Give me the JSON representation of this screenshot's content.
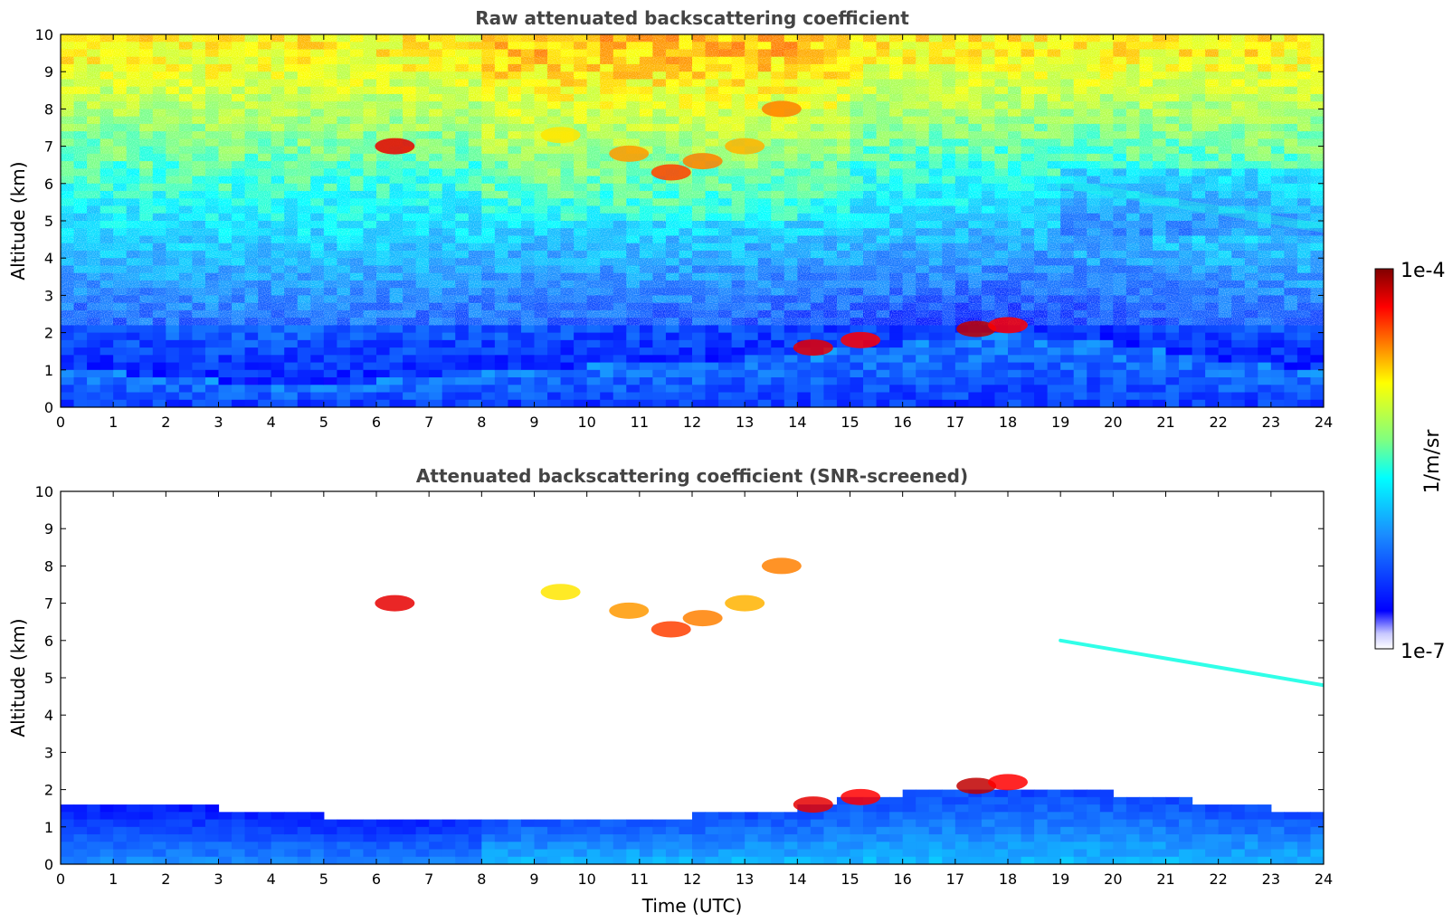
{
  "chart_data": [
    {
      "type": "heatmap",
      "title": "Raw attenuated backscattering coefficient",
      "xlabel": "",
      "ylabel": "Altitude (km)",
      "xlim": [
        0,
        24
      ],
      "ylim": [
        0,
        10
      ],
      "xticks": [
        "0",
        "1",
        "2",
        "3",
        "4",
        "5",
        "6",
        "7",
        "8",
        "9",
        "10",
        "11",
        "12",
        "13",
        "14",
        "15",
        "16",
        "17",
        "18",
        "19",
        "20",
        "21",
        "22",
        "23",
        "24"
      ],
      "yticks": [
        "0",
        "1",
        "2",
        "3",
        "4",
        "5",
        "6",
        "7",
        "8",
        "9",
        "10"
      ],
      "screened": false,
      "boundary_layer_top_km": [
        [
          0,
          1.1
        ],
        [
          2,
          0.8
        ],
        [
          4,
          0.6
        ],
        [
          6,
          0.7
        ],
        [
          8,
          1.0
        ],
        [
          10,
          1.1
        ],
        [
          12,
          1.2
        ],
        [
          14,
          1.4
        ],
        [
          15,
          1.6
        ],
        [
          16,
          1.7
        ],
        [
          17,
          1.9
        ],
        [
          18,
          2.0
        ],
        [
          19,
          1.8
        ],
        [
          20,
          1.7
        ],
        [
          21,
          1.5
        ],
        [
          22,
          1.2
        ],
        [
          24,
          1.0
        ]
      ],
      "clouds": [
        {
          "x": 6.35,
          "y": 7.0,
          "level": 0.92
        },
        {
          "x": 9.5,
          "y": 7.3,
          "level": 0.72
        },
        {
          "x": 10.8,
          "y": 6.8,
          "level": 0.78
        },
        {
          "x": 11.6,
          "y": 6.3,
          "level": 0.85
        },
        {
          "x": 12.2,
          "y": 6.6,
          "level": 0.8
        },
        {
          "x": 13.0,
          "y": 7.0,
          "level": 0.76
        },
        {
          "x": 13.7,
          "y": 8.0,
          "level": 0.8
        },
        {
          "x": 14.3,
          "y": 1.6,
          "level": 0.92
        },
        {
          "x": 15.2,
          "y": 1.8,
          "level": 0.9
        },
        {
          "x": 17.4,
          "y": 2.1,
          "level": 0.95
        },
        {
          "x": 18.0,
          "y": 2.2,
          "level": 0.9
        }
      ],
      "aerosol_layer": [
        {
          "x": 19.0,
          "y": 6.0
        },
        {
          "x": 24.0,
          "y": 4.8
        }
      ]
    },
    {
      "type": "heatmap",
      "title": "Attenuated backscattering coefficient (SNR-screened)",
      "xlabel": "Time (UTC)",
      "ylabel": "Altitude (km)",
      "xlim": [
        0,
        24
      ],
      "ylim": [
        0,
        10
      ],
      "xticks": [
        "0",
        "1",
        "2",
        "3",
        "4",
        "5",
        "6",
        "7",
        "8",
        "9",
        "10",
        "11",
        "12",
        "13",
        "14",
        "15",
        "16",
        "17",
        "18",
        "19",
        "20",
        "21",
        "22",
        "23",
        "24"
      ],
      "yticks": [
        "0",
        "1",
        "2",
        "3",
        "4",
        "5",
        "6",
        "7",
        "8",
        "9",
        "10"
      ],
      "screened": true,
      "boundary_layer_top_km": [
        [
          0,
          1.6
        ],
        [
          2,
          1.5
        ],
        [
          3,
          1.5
        ],
        [
          5,
          1.3
        ],
        [
          6,
          1.1
        ],
        [
          7,
          1.2
        ],
        [
          8,
          1.3
        ],
        [
          10,
          1.3
        ],
        [
          12,
          1.3
        ],
        [
          14,
          1.5
        ],
        [
          15,
          1.8
        ],
        [
          16,
          1.9
        ],
        [
          17,
          2.1
        ],
        [
          18,
          1.9
        ],
        [
          19,
          2.0
        ],
        [
          20,
          1.9
        ],
        [
          21,
          1.8
        ],
        [
          22,
          1.6
        ],
        [
          24,
          1.4
        ]
      ],
      "clouds": [
        {
          "x": 6.35,
          "y": 7.0,
          "level": 0.92
        },
        {
          "x": 9.5,
          "y": 7.3,
          "level": 0.72
        },
        {
          "x": 10.8,
          "y": 6.8,
          "level": 0.78
        },
        {
          "x": 11.6,
          "y": 6.3,
          "level": 0.85
        },
        {
          "x": 12.2,
          "y": 6.6,
          "level": 0.8
        },
        {
          "x": 13.0,
          "y": 7.0,
          "level": 0.76
        },
        {
          "x": 13.7,
          "y": 8.0,
          "level": 0.8
        },
        {
          "x": 14.3,
          "y": 1.6,
          "level": 0.92
        },
        {
          "x": 15.2,
          "y": 1.8,
          "level": 0.9
        },
        {
          "x": 17.4,
          "y": 2.1,
          "level": 0.95
        },
        {
          "x": 18.0,
          "y": 2.2,
          "level": 0.9
        }
      ],
      "aerosol_layer": [
        {
          "x": 19.0,
          "y": 6.0
        },
        {
          "x": 24.0,
          "y": 4.8
        }
      ]
    }
  ],
  "colorbar": {
    "label": "1/m/sr",
    "max_label": "1e-4",
    "min_label": "1e-7",
    "colormap": "jet",
    "colors": [
      "#ffffff",
      "#0000ff",
      "#1a8cff",
      "#00ffff",
      "#80ff80",
      "#ffff00",
      "#ff8000",
      "#ff0000",
      "#800000"
    ]
  }
}
